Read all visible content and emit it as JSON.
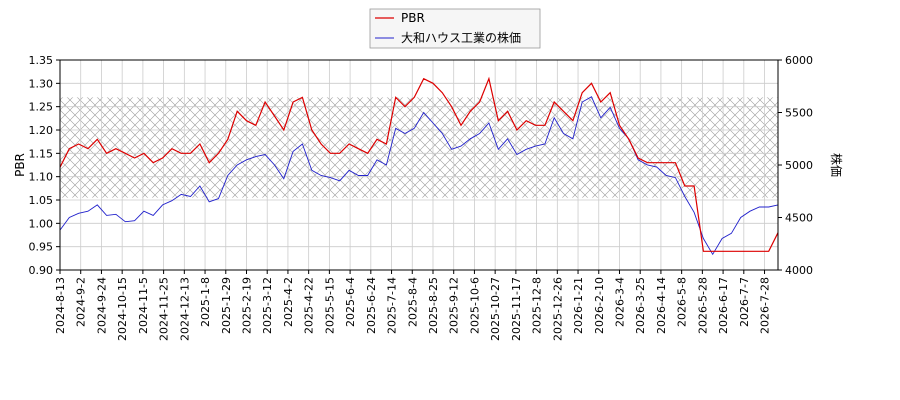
{
  "chart_data": {
    "type": "line",
    "title": "",
    "xlabel": "",
    "ylabel_left": "PBR",
    "ylabel_right": "株価",
    "ylim_left": [
      0.9,
      1.35
    ],
    "ylim_right": [
      4000,
      6000
    ],
    "yticks_left": [
      "0.90",
      "0.95",
      "1.00",
      "1.05",
      "1.10",
      "1.15",
      "1.20",
      "1.25",
      "1.30",
      "1.35"
    ],
    "yticks_right": [
      "4000",
      "4500",
      "5000",
      "5500",
      "6000"
    ],
    "xticks": [
      "2024-8-13",
      "2024-9-2",
      "2024-9-24",
      "2024-10-15",
      "2024-11-5",
      "2024-11-25",
      "2024-12-13",
      "2025-1-8",
      "2025-1-29",
      "2025-2-19",
      "2025-3-12",
      "2025-4-2",
      "2025-4-22",
      "2025-5-15",
      "2025-6-4",
      "2025-6-24",
      "2025-7-14",
      "2025-8-4",
      "2025-8-25",
      "2025-9-12",
      "2025-10-6",
      "2025-10-27",
      "2025-11-17",
      "2025-12-8",
      "2025-12-26",
      "2026-1-21",
      "2026-2-10",
      "2026-3-4",
      "2026-3-25",
      "2026-4-14",
      "2026-5-8",
      "2026-5-28",
      "2026-6-17",
      "2026-7-7",
      "2026-7-28"
    ],
    "grid": true,
    "legend_position": "top-center",
    "band_left": [
      1.055,
      1.27
    ],
    "colors": {
      "pbr": "#dd0000",
      "price": "#2222cc",
      "grid": "#cccccc",
      "hatch": "#999999"
    },
    "series": [
      {
        "name": "PBR",
        "axis": "left",
        "values": [
          1.12,
          1.16,
          1.17,
          1.16,
          1.18,
          1.15,
          1.16,
          1.15,
          1.14,
          1.15,
          1.13,
          1.14,
          1.16,
          1.15,
          1.15,
          1.17,
          1.13,
          1.15,
          1.18,
          1.24,
          1.22,
          1.21,
          1.26,
          1.23,
          1.2,
          1.26,
          1.27,
          1.2,
          1.17,
          1.15,
          1.15,
          1.17,
          1.16,
          1.15,
          1.18,
          1.17,
          1.27,
          1.25,
          1.27,
          1.31,
          1.3,
          1.28,
          1.25,
          1.21,
          1.24,
          1.26,
          1.31,
          1.22,
          1.24,
          1.2,
          1.22,
          1.21,
          1.21,
          1.26,
          1.24,
          1.22,
          1.28,
          1.3,
          1.26,
          1.28,
          1.21,
          1.18,
          1.14,
          1.13,
          1.13,
          1.13,
          1.13,
          1.08,
          1.08,
          0.94,
          0.94,
          0.94,
          0.94,
          0.94,
          0.94,
          0.94,
          0.94,
          0.98
        ]
      },
      {
        "name": "大和ハウス工業の株価",
        "axis": "right",
        "values": [
          4380,
          4500,
          4540,
          4560,
          4620,
          4520,
          4530,
          4460,
          4470,
          4560,
          4520,
          4620,
          4660,
          4720,
          4700,
          4800,
          4650,
          4680,
          4900,
          5000,
          5050,
          5080,
          5100,
          5000,
          4870,
          5130,
          5200,
          4950,
          4900,
          4880,
          4850,
          4950,
          4900,
          4900,
          5050,
          5000,
          5350,
          5300,
          5350,
          5500,
          5400,
          5300,
          5150,
          5180,
          5250,
          5300,
          5400,
          5150,
          5250,
          5100,
          5150,
          5180,
          5200,
          5450,
          5300,
          5250,
          5600,
          5650,
          5450,
          5550,
          5350,
          5250,
          5050,
          5000,
          4980,
          4900,
          4880,
          4700,
          4550,
          4300,
          4150,
          4300,
          4350,
          4500,
          4560,
          4600,
          4600,
          4620
        ]
      }
    ]
  }
}
